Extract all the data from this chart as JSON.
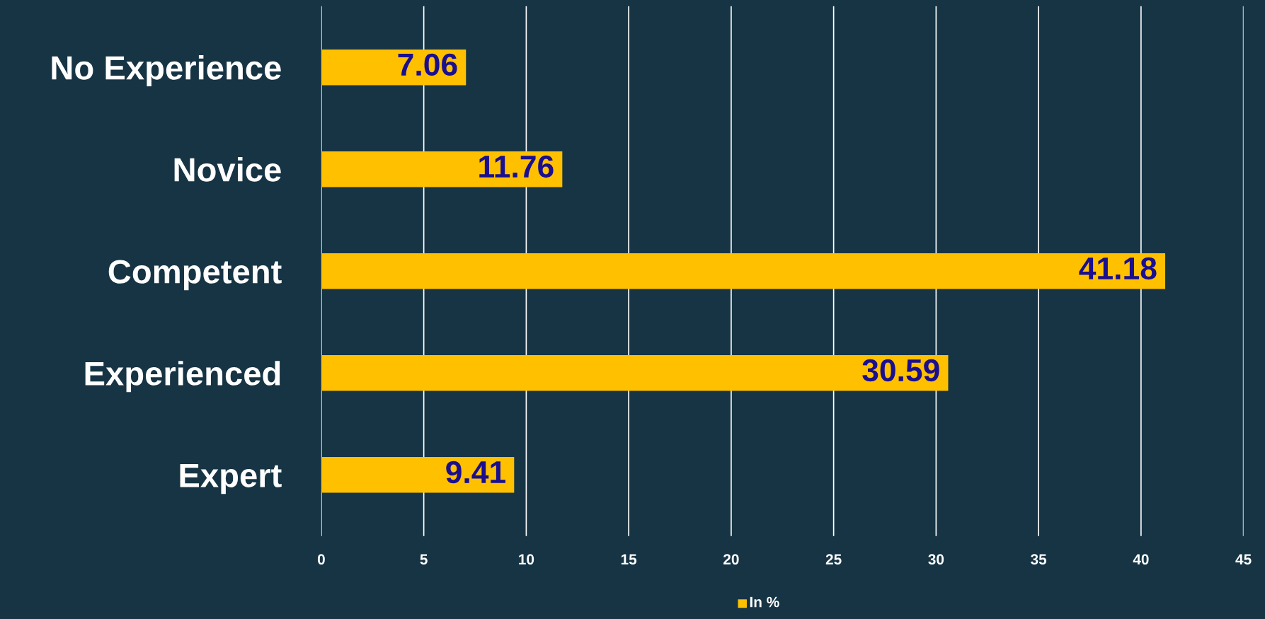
{
  "chart_data": {
    "type": "bar",
    "orientation": "horizontal",
    "categories": [
      "No Experience",
      "Novice",
      "Competent",
      "Experienced",
      "Expert"
    ],
    "series": [
      {
        "name": "In %",
        "color": "#ffc000",
        "values": [
          7.06,
          11.76,
          41.18,
          30.59,
          9.41
        ]
      }
    ],
    "xlim": [
      0,
      45
    ],
    "xticks": [
      0,
      5,
      10,
      15,
      20,
      25,
      30,
      35,
      40,
      45
    ],
    "grid": "x",
    "legend": "bottom",
    "data_labels": true
  }
}
